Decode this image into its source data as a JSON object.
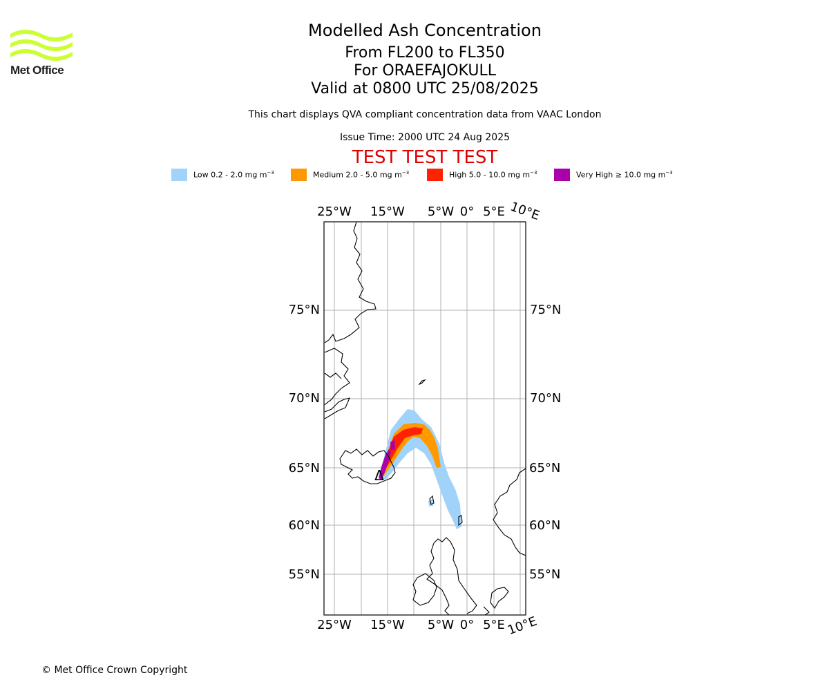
{
  "logo": {
    "text": "Met Office",
    "color": "#ccff33"
  },
  "header": {
    "title": "Modelled Ash Concentration",
    "levels": "From FL200 to FL350",
    "volcano": "For ORAEFAJOKULL",
    "valid": "Valid at 0800 UTC 25/08/2025",
    "description": "This chart displays QVA compliant concentration data from VAAC London",
    "issue_time": "Issue Time: 2000 UTC 24 Aug 2025",
    "test_banner": "TEST TEST TEST"
  },
  "legend": [
    {
      "name": "Low",
      "label": "Low 0.2 - 2.0 mg m",
      "color": "#a0d2fa"
    },
    {
      "name": "Medium",
      "label": "Medium 2.0 - 5.0 mg m",
      "color": "#ff9900"
    },
    {
      "name": "High",
      "label": "High 5.0 - 10.0 mg m",
      "color": "#ff2200"
    },
    {
      "name": "Very High",
      "label": "Very High  ≥  10.0 mg m",
      "color": "#aa00aa"
    }
  ],
  "legend_unit_exponent": "−3",
  "map": {
    "lon_labels_top": [
      "25°W",
      "15°W",
      "5°W",
      "0°",
      "5°E",
      "10°E"
    ],
    "lon_labels_bottom": [
      "25°W",
      "15°W",
      "5°W",
      "0°",
      "5°E",
      "10°E"
    ],
    "lat_labels": [
      "75°N",
      "70°N",
      "65°N",
      "60°N",
      "55°N"
    ],
    "volcano_marker": "Δ",
    "gridline_color": "#b0b0b0"
  },
  "footer": {
    "copyright": "© Met Office Crown Copyright"
  }
}
